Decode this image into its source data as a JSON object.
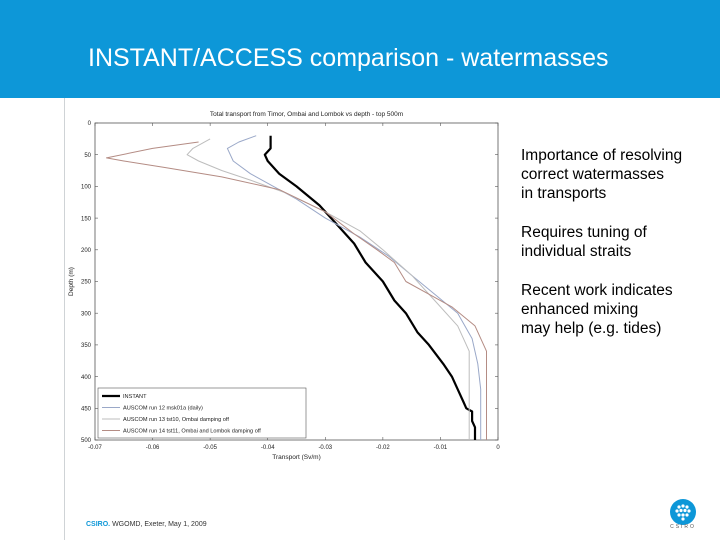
{
  "slide": {
    "title": "INSTANT/ACCESS comparison - watermasses",
    "bullets": [
      "Importance of resolving\ncorrect watermasses\nin transports",
      "Requires tuning of\nindividual straits",
      "Recent work indicates\nenhanced mixing\nmay help (e.g. tides)"
    ],
    "footer": {
      "brand": "CSIRO.",
      "text": "WGOMD, Exeter, May 1, 2009"
    },
    "logo_text": "CSIRO"
  },
  "colors": {
    "header": "#0d97d8",
    "text": "#000000"
  },
  "chart_data": {
    "type": "line",
    "title": "Total transport from Timor, Ombai and Lombok vs depth - top 500m",
    "xlabel": "Transport (Sv/m)",
    "ylabel": "Depth (m)",
    "xlim": [
      -0.07,
      0
    ],
    "ylim": [
      0,
      500
    ],
    "y_inverted": true,
    "xticks": [
      -0.07,
      -0.06,
      -0.05,
      -0.04,
      -0.03,
      -0.02,
      -0.01,
      0
    ],
    "xtick_labels": [
      "-0.07",
      "-0.06",
      "-0.05",
      "-0.04",
      "-0.03",
      "-0.02",
      "-0.01",
      "0"
    ],
    "yticks": [
      0,
      50,
      100,
      150,
      200,
      250,
      300,
      350,
      400,
      450,
      500
    ],
    "legend": "bottom-left",
    "grid": false,
    "series": [
      {
        "name": "INSTANT",
        "color": "#000000",
        "width": 2.2,
        "x": [
          -0.0395,
          -0.0395,
          -0.0405,
          -0.04,
          -0.038,
          -0.035,
          -0.031,
          -0.028,
          -0.025,
          -0.023,
          -0.02,
          -0.018,
          -0.016,
          -0.014,
          -0.012,
          -0.0095,
          -0.008,
          -0.007,
          -0.006,
          -0.0055,
          -0.0045,
          -0.0045,
          -0.004,
          -0.004
        ],
        "y": [
          20,
          40,
          50,
          60,
          80,
          100,
          130,
          160,
          190,
          220,
          250,
          280,
          300,
          330,
          350,
          380,
          400,
          420,
          440,
          450,
          455,
          470,
          480,
          500
        ]
      },
      {
        "name": "AUSCOM run 12 msk01a (daily)",
        "color": "#9aa8c8",
        "width": 1,
        "x": [
          -0.042,
          -0.045,
          -0.047,
          -0.046,
          -0.043,
          -0.039,
          -0.035,
          -0.03,
          -0.024,
          -0.019,
          -0.015,
          -0.011,
          -0.007,
          -0.0045,
          -0.0035,
          -0.003,
          -0.003
        ],
        "y": [
          20,
          30,
          40,
          60,
          80,
          100,
          120,
          150,
          180,
          210,
          240,
          270,
          300,
          340,
          380,
          420,
          500
        ]
      },
      {
        "name": "AUSCOM run 13 tst10, Ombai damping off",
        "color": "#bdbdbd",
        "width": 1,
        "x": [
          -0.05,
          -0.053,
          -0.054,
          -0.052,
          -0.048,
          -0.043,
          -0.037,
          -0.03,
          -0.024,
          -0.02,
          -0.015,
          -0.011,
          -0.007,
          -0.005,
          -0.005,
          -0.005
        ],
        "y": [
          25,
          40,
          50,
          60,
          75,
          90,
          110,
          140,
          170,
          200,
          240,
          280,
          320,
          360,
          400,
          500
        ]
      },
      {
        "name": "AUSCOM run 14 tst11, Ombai and Lombok damping off",
        "color": "#b48c84",
        "width": 1,
        "x": [
          -0.052,
          -0.06,
          -0.068,
          -0.065,
          -0.058,
          -0.048,
          -0.038,
          -0.03,
          -0.025,
          -0.021,
          -0.018,
          -0.016,
          -0.012,
          -0.008,
          -0.004,
          -0.002,
          -0.002,
          -0.002
        ],
        "y": [
          30,
          40,
          55,
          60,
          70,
          85,
          105,
          140,
          175,
          200,
          220,
          250,
          270,
          290,
          320,
          360,
          420,
          500
        ]
      }
    ]
  }
}
